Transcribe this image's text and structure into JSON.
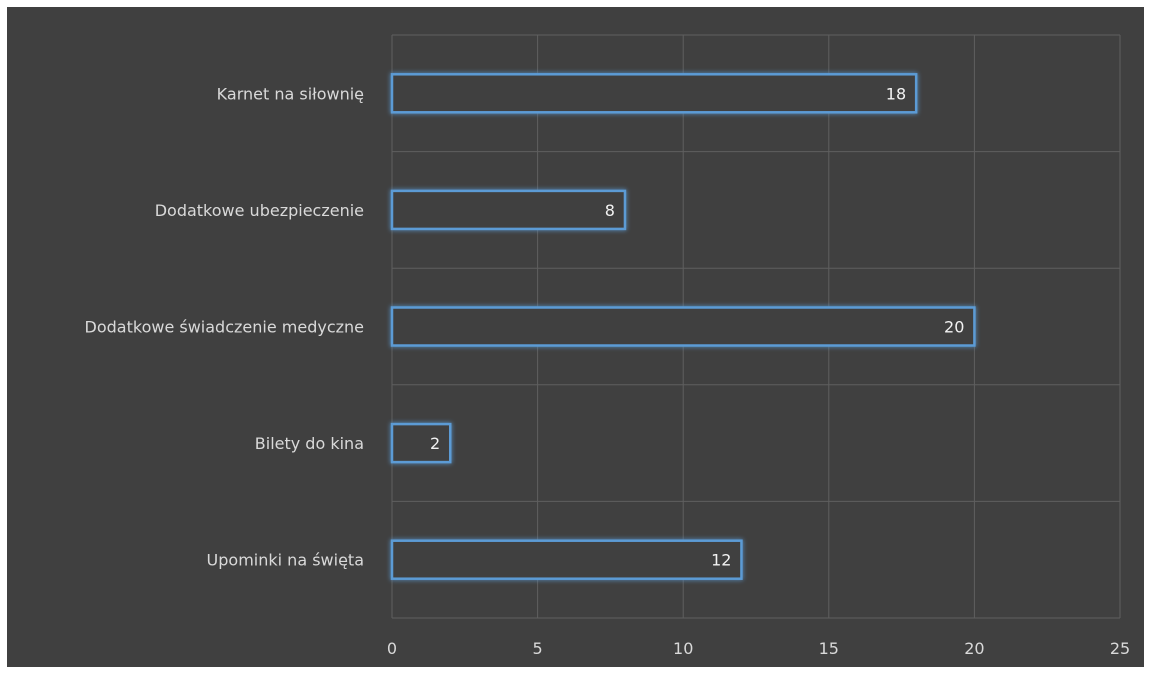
{
  "chart_data": {
    "type": "bar",
    "orientation": "horizontal",
    "categories": [
      "Karnet na siłownię",
      "Dodatkowe ubezpieczenie",
      "Dodatkowe świadczenie medyczne",
      "Bilety do kina",
      "Upominki na święta"
    ],
    "values": [
      18,
      8,
      20,
      2,
      12
    ],
    "title": "",
    "xlabel": "",
    "ylabel": "",
    "xlim": [
      0,
      25
    ],
    "xticks": [
      0,
      5,
      10,
      15,
      20,
      25
    ],
    "grid": true,
    "data_labels": true,
    "colors": {
      "background": "#404040",
      "gridline": "#5f5f5f",
      "bar_fill": "#404040",
      "bar_outline": "#5b9bd5",
      "text": "#d9d9d9"
    }
  }
}
